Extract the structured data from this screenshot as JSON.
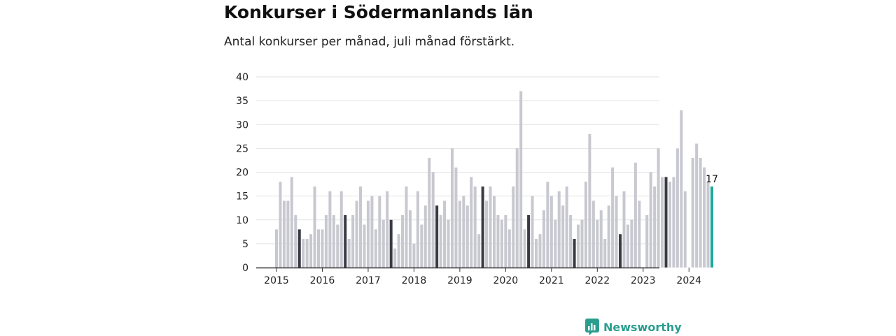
{
  "chart_data": {
    "type": "bar",
    "title": "Konkurser i Södermanlands län",
    "subtitle": "Antal konkurser per månad, juli månad förstärkt.",
    "ylim": [
      0,
      40
    ],
    "yticks": [
      0,
      5,
      10,
      15,
      20,
      25,
      30,
      35,
      40
    ],
    "xtick_labels": [
      "2015",
      "2016",
      "2017",
      "2018",
      "2019",
      "2020",
      "2021",
      "2022",
      "2023",
      "2024"
    ],
    "start": "2015-01",
    "end": "2024-07",
    "values": [
      8,
      18,
      14,
      14,
      19,
      11,
      8,
      6,
      6,
      7,
      17,
      8,
      8,
      11,
      16,
      11,
      9,
      16,
      11,
      6,
      11,
      14,
      17,
      9,
      14,
      15,
      8,
      15,
      10,
      16,
      10,
      4,
      7,
      11,
      17,
      12,
      5,
      16,
      9,
      13,
      23,
      20,
      13,
      11,
      14,
      10,
      25,
      21,
      14,
      15,
      13,
      19,
      17,
      7,
      17,
      14,
      17,
      15,
      11,
      10,
      11,
      8,
      17,
      25,
      37,
      8,
      11,
      15,
      6,
      7,
      12,
      18,
      15,
      10,
      16,
      13,
      17,
      11,
      6,
      9,
      10,
      18,
      28,
      14,
      10,
      12,
      6,
      13,
      21,
      15,
      7,
      16,
      9,
      10,
      22,
      14,
      0,
      11,
      20,
      17,
      25,
      19,
      19,
      18,
      19,
      25,
      33,
      16,
      0,
      23,
      26,
      23,
      21,
      18,
      17
    ],
    "highlight_month": "juli",
    "last_value_label": "17",
    "colors": {
      "bar": "#c8c8d0",
      "july": "#3a3a44",
      "latest": "#1fa89a",
      "grid": "#e2e2e6",
      "axis": "#333333",
      "text": "#222222"
    }
  },
  "brand": {
    "name": "Newsworthy",
    "icon": "newsworthy-bar-chart-icon",
    "color": "#2a9d8f"
  }
}
